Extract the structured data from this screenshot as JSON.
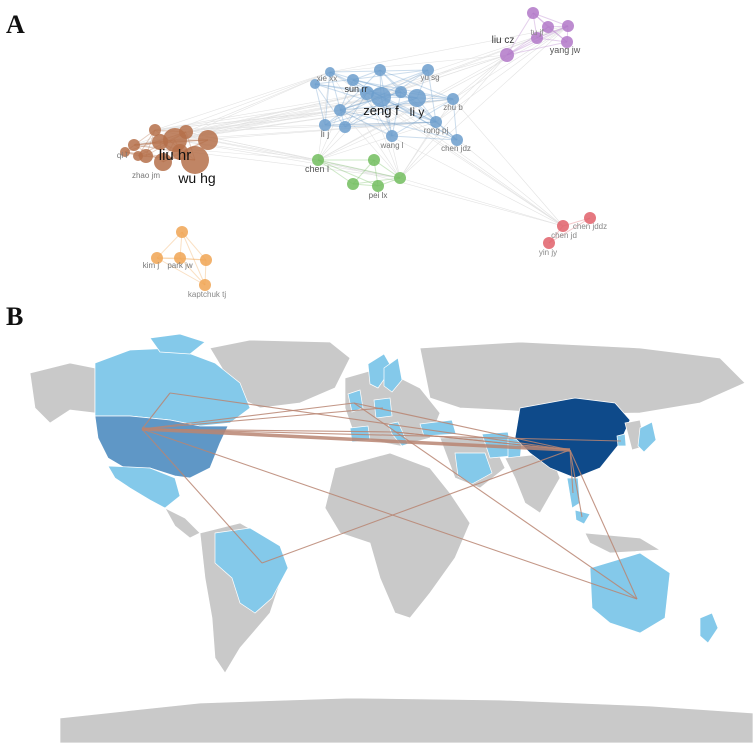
{
  "panels": {
    "a": "A",
    "b": "B"
  },
  "colors": {
    "brown": "#b5704a",
    "blue": "#6c9dcc",
    "purple": "#b278c8",
    "green": "#72bd5e",
    "red": "#e0606a",
    "orange": "#f0a554",
    "edge": "#cfcfcf",
    "land": "#c9c9c9",
    "light_blue": "#84c9ea",
    "mid_blue": "#5f97c6",
    "dark_blue": "#0e4a8a",
    "map_link": "#b98572"
  },
  "network": {
    "clusters": [
      {
        "id": "brown",
        "color": "brown",
        "labels": [
          {
            "key": "liu_hr",
            "text": "liu hr"
          },
          {
            "key": "wu_hg",
            "text": "wu hg"
          },
          {
            "key": "qi_l",
            "text": "qi l"
          },
          {
            "key": "zhao_jm",
            "text": "zhao jm"
          }
        ]
      },
      {
        "id": "blue",
        "color": "blue",
        "labels": [
          {
            "key": "zeng_f",
            "text": "zeng f"
          },
          {
            "key": "li_y",
            "text": "li y"
          },
          {
            "key": "sun_rr",
            "text": "sun rr"
          },
          {
            "key": "yu_sg",
            "text": "yu sg"
          },
          {
            "key": "zhu_b",
            "text": "zhu b"
          },
          {
            "key": "li_j",
            "text": "li j"
          },
          {
            "key": "wang_l",
            "text": "wang l"
          },
          {
            "key": "rong_pj",
            "text": "rong pj"
          },
          {
            "key": "chen_jdz",
            "text": "chen jdz"
          },
          {
            "key": "xie_xx",
            "text": "xie xx"
          }
        ]
      },
      {
        "id": "purple",
        "color": "purple",
        "labels": [
          {
            "key": "liu_cz",
            "text": "liu cz"
          },
          {
            "key": "yang_jw",
            "text": "yang jw"
          },
          {
            "key": "tu_jf",
            "text": "tu jf"
          }
        ]
      },
      {
        "id": "green",
        "color": "green",
        "labels": [
          {
            "key": "chen_l",
            "text": "chen l"
          },
          {
            "key": "pei_lx",
            "text": "pei lx"
          }
        ]
      },
      {
        "id": "red",
        "color": "red",
        "labels": [
          {
            "key": "chen_jd",
            "text": "chen jd"
          },
          {
            "key": "chen_jddz",
            "text": "chen jddz"
          },
          {
            "key": "yin_jy",
            "text": "yin jy"
          }
        ]
      },
      {
        "id": "orange",
        "color": "orange",
        "labels": [
          {
            "key": "kim_j",
            "text": "kim j"
          },
          {
            "key": "park_jw",
            "text": "park jw"
          },
          {
            "key": "kaptchuk_tj",
            "text": "kaptchuk tj"
          }
        ]
      }
    ]
  },
  "map": {
    "countries": [
      {
        "name": "China",
        "level": "high"
      },
      {
        "name": "United States",
        "level": "medium"
      },
      {
        "name": "Canada",
        "level": "low"
      },
      {
        "name": "Mexico",
        "level": "low"
      },
      {
        "name": "Brazil",
        "level": "low"
      },
      {
        "name": "Australia",
        "level": "low"
      },
      {
        "name": "Japan",
        "level": "low"
      },
      {
        "name": "South Korea",
        "level": "low"
      },
      {
        "name": "United Kingdom",
        "level": "low"
      },
      {
        "name": "Germany",
        "level": "low"
      },
      {
        "name": "Italy",
        "level": "low"
      },
      {
        "name": "Spain",
        "level": "low"
      },
      {
        "name": "Sweden",
        "level": "low"
      },
      {
        "name": "Norway",
        "level": "low"
      },
      {
        "name": "Iran",
        "level": "low"
      },
      {
        "name": "Thailand",
        "level": "low"
      },
      {
        "name": "Malaysia",
        "level": "low"
      },
      {
        "name": "New Zealand",
        "level": "low"
      },
      {
        "name": "Turkey",
        "level": "low"
      },
      {
        "name": "Pakistan",
        "level": "low"
      },
      {
        "name": "Saudi Arabia",
        "level": "low"
      }
    ],
    "links": [
      [
        "United States",
        "China"
      ],
      [
        "United States",
        "United Kingdom"
      ],
      [
        "United States",
        "Germany"
      ],
      [
        "United States",
        "Italy"
      ],
      [
        "United States",
        "Australia"
      ],
      [
        "United States",
        "Brazil"
      ],
      [
        "United States",
        "South Korea"
      ],
      [
        "Canada",
        "China"
      ],
      [
        "Canada",
        "United States"
      ],
      [
        "China",
        "Australia"
      ],
      [
        "China",
        "Brazil"
      ],
      [
        "China",
        "United Kingdom"
      ],
      [
        "China",
        "Italy"
      ],
      [
        "China",
        "Thailand"
      ],
      [
        "China",
        "Malaysia"
      ],
      [
        "United Kingdom",
        "Australia"
      ],
      [
        "Italy",
        "China"
      ]
    ]
  }
}
